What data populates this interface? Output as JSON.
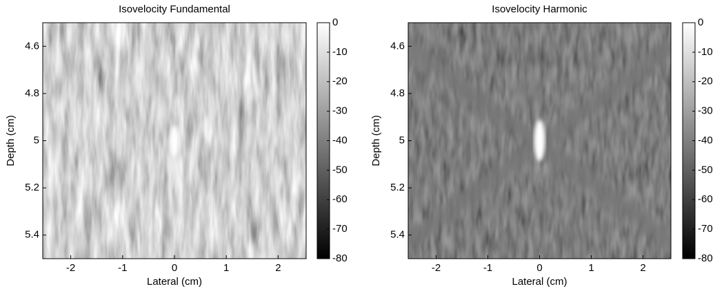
{
  "chart_data": [
    {
      "type": "heatmap",
      "title": "Isovelocity Fundamental",
      "xlabel": "Lateral (cm)",
      "ylabel": "Depth (cm)",
      "xlim": [
        -2.54,
        2.54
      ],
      "xticks": [
        -2,
        -1,
        0,
        1,
        2
      ],
      "ylim": [
        4.5,
        5.5
      ],
      "yticks": [
        4.6,
        4.8,
        5,
        5.2,
        5.4
      ],
      "colorbar": {
        "lim": [
          -80,
          0
        ],
        "ticks": [
          0,
          -10,
          -20,
          -30,
          -40,
          -50,
          -60,
          -70,
          -80
        ]
      }
    },
    {
      "type": "heatmap",
      "title": "Isovelocity Harmonic",
      "xlabel": "Lateral (cm)",
      "ylabel": "Depth (cm)",
      "xlim": [
        -2.54,
        2.54
      ],
      "xticks": [
        -2,
        -1,
        0,
        1,
        2
      ],
      "ylim": [
        4.5,
        5.5
      ],
      "yticks": [
        4.6,
        4.8,
        5,
        5.2,
        5.4
      ],
      "colorbar": {
        "lim": [
          -80,
          0
        ],
        "ticks": [
          0,
          -10,
          -20,
          -30,
          -40,
          -50,
          -60,
          -70,
          -80
        ]
      }
    }
  ]
}
